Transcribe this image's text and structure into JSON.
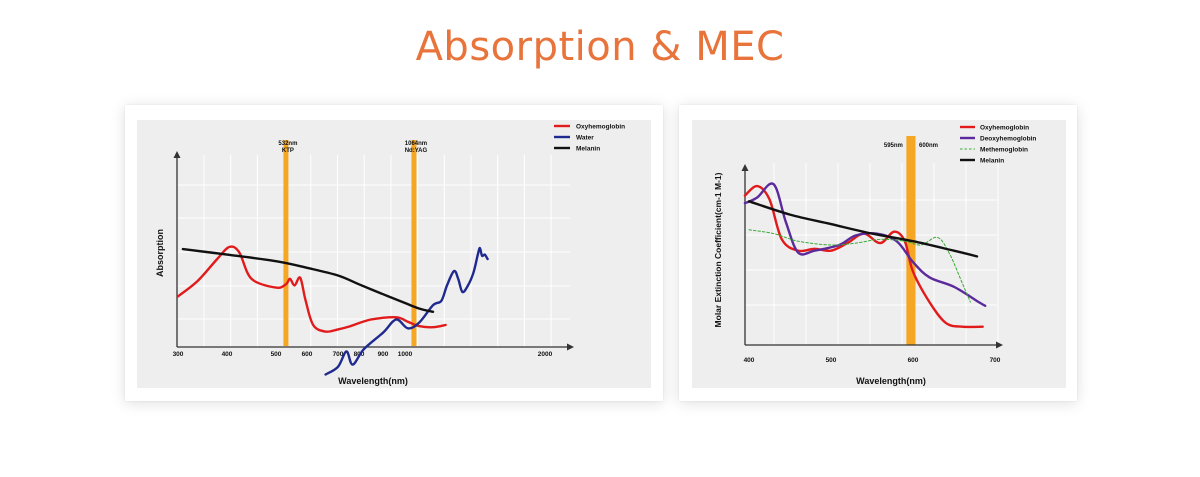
{
  "page": {
    "title": "Absorption & MEC",
    "title_color": "#E8743B"
  },
  "colors": {
    "panel_bg": "#eeeeee",
    "grid": "#ffffff",
    "laser_band": "#F6A623",
    "oxy": "#E11B1B",
    "water": "#1F2A8F",
    "melanin": "#111111",
    "deoxy": "#5B2A9C",
    "methemo": "#3AAA35"
  },
  "chart_data": [
    {
      "type": "line",
      "xlabel": "Wavelength(nm)",
      "ylabel": "Absorption",
      "xticks": [
        "300",
        "400",
        "500",
        "600",
        "700",
        "800",
        "900",
        "1000",
        "2000"
      ],
      "x_scale": "piecewise-compressed",
      "laser_lines": [
        {
          "wavelength": 532,
          "label_line1": "532nm",
          "label_line2": "KTP"
        },
        {
          "wavelength": 1064,
          "label_line1": "1064nm",
          "label_line2": "Nd:YAG"
        }
      ],
      "legend": {
        "position": "top-right"
      },
      "series": [
        {
          "name": "Oxyhemoglobin",
          "color_key": "oxy",
          "points": [
            [
              300,
              0.46
            ],
            [
              340,
              0.6
            ],
            [
              380,
              0.8
            ],
            [
              405,
              0.91
            ],
            [
              425,
              0.86
            ],
            [
              450,
              0.62
            ],
            [
              500,
              0.54
            ],
            [
              532,
              0.57
            ],
            [
              545,
              0.62
            ],
            [
              560,
              0.56
            ],
            [
              578,
              0.63
            ],
            [
              595,
              0.43
            ],
            [
              620,
              0.2
            ],
            [
              660,
              0.14
            ],
            [
              700,
              0.16
            ],
            [
              760,
              0.19
            ],
            [
              850,
              0.25
            ],
            [
              960,
              0.27
            ],
            [
              1020,
              0.23
            ],
            [
              1100,
              0.19
            ],
            [
              1200,
              0.18
            ],
            [
              1290,
              0.2
            ]
          ]
        },
        {
          "name": "Water",
          "color_key": "water",
          "points": [
            [
              660,
              -0.25
            ],
            [
              700,
              -0.18
            ],
            [
              740,
              -0.04
            ],
            [
              770,
              -0.16
            ],
            [
              820,
              -0.02
            ],
            [
              900,
              0.13
            ],
            [
              960,
              0.25
            ],
            [
              1020,
              0.17
            ],
            [
              1100,
              0.22
            ],
            [
              1200,
              0.38
            ],
            [
              1260,
              0.42
            ],
            [
              1300,
              0.56
            ],
            [
              1350,
              0.69
            ],
            [
              1380,
              0.62
            ],
            [
              1410,
              0.5
            ],
            [
              1450,
              0.56
            ],
            [
              1490,
              0.68
            ],
            [
              1520,
              0.84
            ],
            [
              1535,
              0.9
            ],
            [
              1550,
              0.83
            ],
            [
              1570,
              0.84
            ],
            [
              1590,
              0.8
            ]
          ]
        },
        {
          "name": "Melanin",
          "color_key": "melanin",
          "points": [
            [
              310,
              0.89
            ],
            [
              400,
              0.84
            ],
            [
              500,
              0.78
            ],
            [
              600,
              0.72
            ],
            [
              700,
              0.65
            ],
            [
              800,
              0.57
            ],
            [
              900,
              0.48
            ],
            [
              1000,
              0.4
            ],
            [
              1100,
              0.35
            ],
            [
              1200,
              0.32
            ]
          ]
        }
      ]
    },
    {
      "type": "line",
      "xlabel": "Wavelength(nm)",
      "ylabel": "Molar Extinction Coefficient(cm-1 M-1)",
      "xticks": [
        "400",
        "500",
        "600",
        "700"
      ],
      "xlim": [
        400,
        700
      ],
      "laser_lines": [
        {
          "wavelength": 595,
          "label": "595nm"
        },
        {
          "wavelength": 600,
          "label": "600nm"
        }
      ],
      "legend": {
        "position": "top-right"
      },
      "series": [
        {
          "name": "Oxyhemoglobin",
          "color_key": "oxy",
          "points": [
            [
              395,
              0.76
            ],
            [
              410,
              0.81
            ],
            [
              425,
              0.74
            ],
            [
              440,
              0.53
            ],
            [
              460,
              0.47
            ],
            [
              480,
              0.48
            ],
            [
              500,
              0.47
            ],
            [
              520,
              0.51
            ],
            [
              540,
              0.56
            ],
            [
              560,
              0.51
            ],
            [
              577,
              0.57
            ],
            [
              590,
              0.52
            ],
            [
              600,
              0.36
            ],
            [
              620,
              0.2
            ],
            [
              640,
              0.09
            ],
            [
              660,
              0.07
            ],
            [
              685,
              0.07
            ]
          ]
        },
        {
          "name": "Deoxyhemoglobin",
          "color_key": "deoxy",
          "points": [
            [
              395,
              0.72
            ],
            [
              410,
              0.75
            ],
            [
              430,
              0.82
            ],
            [
              445,
              0.62
            ],
            [
              460,
              0.46
            ],
            [
              480,
              0.47
            ],
            [
              510,
              0.5
            ],
            [
              530,
              0.55
            ],
            [
              555,
              0.56
            ],
            [
              580,
              0.52
            ],
            [
              600,
              0.41
            ],
            [
              620,
              0.33
            ],
            [
              650,
              0.28
            ],
            [
              680,
              0.2
            ],
            [
              688,
              0.18
            ]
          ]
        },
        {
          "name": "Methemoglobin",
          "color_key": "methemo",
          "points": [
            [
              400,
              0.58
            ],
            [
              430,
              0.56
            ],
            [
              460,
              0.52
            ],
            [
              500,
              0.5
            ],
            [
              530,
              0.51
            ],
            [
              560,
              0.53
            ],
            [
              590,
              0.52
            ],
            [
              610,
              0.5
            ],
            [
              630,
              0.54
            ],
            [
              645,
              0.45
            ],
            [
              660,
              0.3
            ],
            [
              670,
              0.2
            ]
          ]
        },
        {
          "name": "Melanin",
          "color_key": "melanin",
          "points": [
            [
              400,
              0.73
            ],
            [
              450,
              0.66
            ],
            [
              500,
              0.61
            ],
            [
              550,
              0.56
            ],
            [
              600,
              0.52
            ],
            [
              650,
              0.47
            ],
            [
              678,
              0.44
            ]
          ]
        }
      ]
    }
  ]
}
